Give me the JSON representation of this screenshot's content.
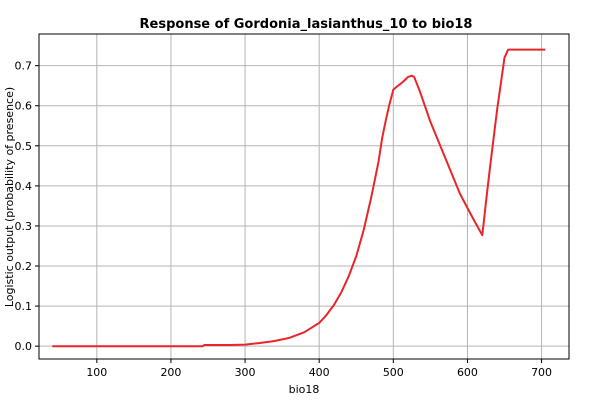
{
  "chart_data": {
    "type": "line",
    "title": "Response of Gordonia_lasianthus_10 to bio18",
    "xlabel": "bio18",
    "ylabel": "Logistic output (probability of presence)",
    "xlim": [
      22,
      737
    ],
    "ylim": [
      -0.032,
      0.779
    ],
    "x_ticks": [
      100,
      200,
      300,
      400,
      500,
      600,
      700
    ],
    "y_ticks": [
      0.0,
      0.1,
      0.2,
      0.3,
      0.4,
      0.5,
      0.6,
      0.7
    ],
    "grid": true,
    "legend": "none",
    "series": [
      {
        "color": "#e8262a",
        "x": [
          40,
          100,
          150,
          200,
          243,
          245,
          280,
          300,
          320,
          340,
          360,
          380,
          400,
          410,
          420,
          430,
          440,
          450,
          460,
          470,
          480,
          485,
          490,
          495,
          500,
          505,
          510,
          515,
          520,
          525,
          528,
          535,
          550,
          570,
          590,
          600,
          610,
          620,
          625,
          630,
          640,
          650,
          655,
          670,
          690,
          705
        ],
        "y": [
          0.0,
          0.0,
          0.0,
          0.0,
          0.0,
          0.003,
          0.003,
          0.004,
          0.008,
          0.013,
          0.021,
          0.035,
          0.058,
          0.078,
          0.103,
          0.135,
          0.175,
          0.225,
          0.29,
          0.37,
          0.46,
          0.52,
          0.565,
          0.605,
          0.64,
          0.648,
          0.655,
          0.663,
          0.672,
          0.675,
          0.672,
          0.64,
          0.56,
          0.47,
          0.38,
          0.345,
          0.31,
          0.277,
          0.36,
          0.44,
          0.59,
          0.72,
          0.74,
          0.74,
          0.74,
          0.74
        ]
      }
    ]
  }
}
